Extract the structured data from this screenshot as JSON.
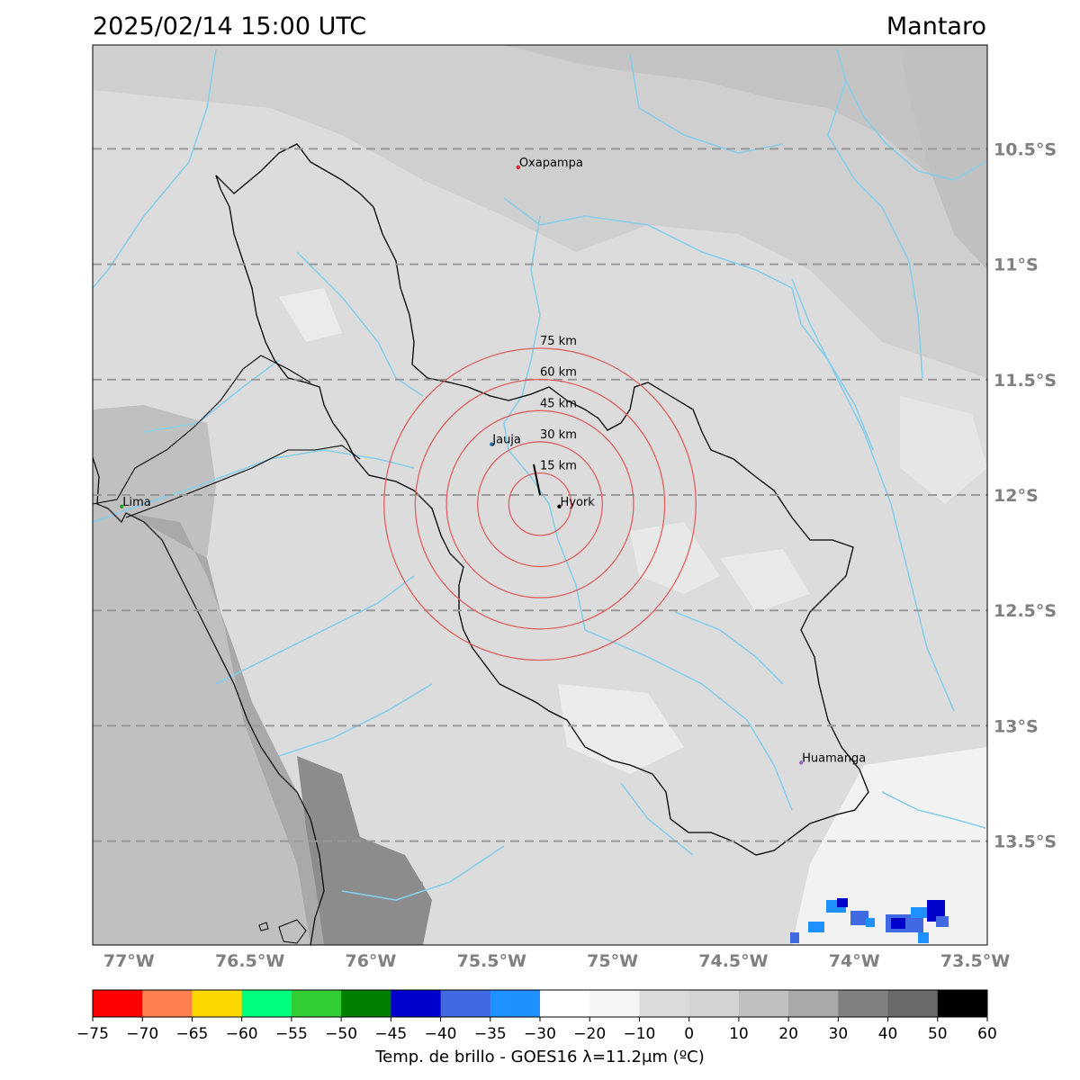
{
  "header": {
    "datetime": "2025/02/14 15:00 UTC",
    "basin": "Mantaro"
  },
  "axes": {
    "lat_labels": [
      "10.5°S",
      "11°S",
      "11.5°S",
      "12°S",
      "12.5°S",
      "13°S",
      "13.5°S"
    ],
    "lat_values": [
      -10.5,
      -11,
      -11.5,
      -12,
      -12.5,
      -13,
      -13.5
    ],
    "lon_labels": [
      "77°W",
      "76.5°W",
      "76°W",
      "75.5°W",
      "75°W",
      "74.5°W",
      "74°W",
      "73.5°W"
    ],
    "lon_values": [
      -77,
      -76.5,
      -76,
      -75.5,
      -75,
      -74.5,
      -74,
      -73.5
    ],
    "lon_range": [
      -77.15,
      -73.45
    ],
    "lat_range": [
      -13.95,
      -10.05
    ]
  },
  "cities": [
    {
      "name": "Oxapampa",
      "lon": -75.39,
      "lat": -10.58,
      "color": "#d62728"
    },
    {
      "name": "Jauja",
      "lon": -75.5,
      "lat": -11.78,
      "color": "#1f77b4"
    },
    {
      "name": "Hyork",
      "lon": -75.22,
      "lat": -12.05,
      "color": "#000000"
    },
    {
      "name": "Lima",
      "lon": -77.03,
      "lat": -12.05,
      "color": "#2ca02c"
    },
    {
      "name": "Huamanga",
      "lon": -74.22,
      "lat": -13.16,
      "color": "#9467bd"
    }
  ],
  "radar": {
    "center_lon": -75.3,
    "center_lat": -12.04,
    "ring_labels": [
      "15 km",
      "30 km",
      "45 km",
      "60 km",
      "75 km"
    ],
    "ring_km": [
      15,
      30,
      45,
      60,
      75
    ],
    "ring_color": "#e06060"
  },
  "colorbar": {
    "label": "Temp. de brillo - GOES16 λ=11.2μm (ºC)",
    "tick_labels": [
      "−75",
      "−70",
      "−65",
      "−60",
      "−55",
      "−50",
      "−45",
      "−40",
      "−35",
      "−30",
      "−20",
      "−10",
      "0",
      "10",
      "20",
      "30",
      "40",
      "50",
      "60"
    ],
    "colors": [
      "#ff0000",
      "#ff7f50",
      "#ffd700",
      "#00ff7f",
      "#32cd32",
      "#008000",
      "#0000cd",
      "#4169e1",
      "#1e90ff",
      "#ffffff",
      "#f5f5f5",
      "#dcdcdc",
      "#d3d3d3",
      "#c0c0c0",
      "#a9a9a9",
      "#808080",
      "#696969",
      "#000000"
    ]
  }
}
